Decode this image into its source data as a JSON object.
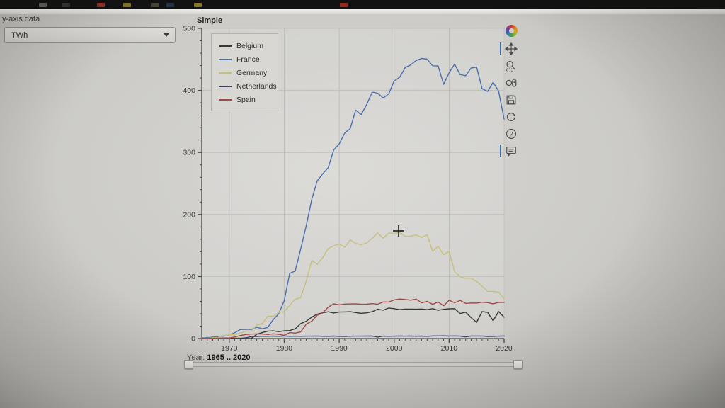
{
  "browser_bar": {
    "favicon_colors": [
      "#6f6f6f",
      "#3a3a3a",
      "#b33428",
      "#9a8a2c",
      "#55503a",
      "#2c3a55",
      "#9a8a2c",
      "#b32b20"
    ]
  },
  "controls": {
    "y_axis_label": "y-axis data",
    "y_axis_value": "TWh"
  },
  "plot": {
    "title": "Simple"
  },
  "toolbar": {
    "tools": [
      "pan",
      "box-zoom",
      "wheel-zoom",
      "save",
      "reset",
      "help",
      "hover"
    ],
    "active": [
      "pan",
      "hover"
    ]
  },
  "slider": {
    "label": "Year:",
    "value": "1965 .. 2020",
    "min": 1965,
    "max": 2020
  },
  "chart_data": {
    "type": "line",
    "title": "Simple",
    "xlabel": "",
    "ylabel": "TWh",
    "xlim": [
      1965,
      2020
    ],
    "ylim": [
      0,
      500
    ],
    "x_ticks": [
      1970,
      1980,
      1990,
      2000,
      2010,
      2020
    ],
    "y_ticks": [
      0,
      100,
      200,
      300,
      400,
      500
    ],
    "grid": true,
    "legend_position": "top_left",
    "x": [
      1965,
      1966,
      1967,
      1968,
      1969,
      1970,
      1971,
      1972,
      1973,
      1974,
      1975,
      1976,
      1977,
      1978,
      1979,
      1980,
      1981,
      1982,
      1983,
      1984,
      1985,
      1986,
      1987,
      1988,
      1989,
      1990,
      1991,
      1992,
      1993,
      1994,
      1995,
      1996,
      1997,
      1998,
      1999,
      2000,
      2001,
      2002,
      2003,
      2004,
      2005,
      2006,
      2007,
      2008,
      2009,
      2010,
      2011,
      2012,
      2013,
      2014,
      2015,
      2016,
      2017,
      2018,
      2019,
      2020
    ],
    "series": [
      {
        "name": "Belgium",
        "color": "#343a35",
        "values": [
          0,
          0,
          0,
          0,
          0,
          0,
          0,
          0,
          0,
          0.1,
          6.8,
          9.8,
          11.9,
          12.5,
          11.1,
          12.5,
          12.9,
          15.7,
          24.1,
          27.8,
          34.5,
          39.4,
          41.4,
          43.1,
          41.2,
          42.7,
          42.9,
          43.3,
          41.9,
          40.6,
          41.4,
          43.3,
          47.4,
          45.7,
          49.2,
          48.2,
          46.7,
          47.4,
          47.4,
          47.3,
          47.6,
          46.6,
          48.2,
          45.6,
          47.2,
          47.9,
          48.2,
          40.3,
          42.6,
          33.7,
          26.1,
          43.5,
          42.2,
          28.6,
          43.5,
          34.4
        ]
      },
      {
        "name": "France",
        "color": "#4a6fae",
        "values": [
          0.9,
          1.4,
          2.3,
          3.1,
          4,
          5.7,
          9.4,
          14.6,
          14.8,
          14.7,
          18.3,
          15.8,
          17.9,
          30.5,
          39.9,
          61.2,
          105.2,
          108.9,
          144.2,
          181.7,
          224.1,
          254.2,
          265.5,
          275.5,
          303.9,
          313.7,
          331.3,
          338.4,
          368.2,
          361.1,
          377.2,
          397.3,
          395.5,
          387.9,
          394.2,
          415.2,
          421.1,
          436.8,
          441.1,
          448.2,
          451.5,
          450.2,
          439.7,
          439.5,
          409.7,
          428.5,
          442.4,
          425.4,
          423.7,
          436.1,
          437.4,
          402.9,
          398.4,
          412.9,
          399,
          353.8
        ]
      },
      {
        "name": "Germany",
        "color": "#c6c07c",
        "values": [
          0.1,
          0.3,
          1.1,
          1.9,
          5,
          6,
          5.9,
          9.2,
          11.9,
          12,
          21.4,
          24.3,
          36,
          35.9,
          42,
          43.7,
          53.4,
          63.6,
          65.9,
          92.6,
          125.9,
          119.6,
          130.5,
          145.1,
          149.4,
          152.5,
          147.4,
          158.8,
          153.5,
          151.2,
          154.1,
          161.6,
          170.3,
          161.6,
          170,
          169.6,
          171.3,
          164.8,
          165.1,
          167.1,
          163,
          167.4,
          140.5,
          148.8,
          134.9,
          140.6,
          108,
          99.5,
          97.3,
          97.1,
          91.8,
          84.6,
          76.3,
          76,
          75.1,
          64.4
        ]
      },
      {
        "name": "Netherlands",
        "color": "#39405c",
        "values": [
          0,
          0,
          0,
          0.3,
          0.4,
          0.4,
          0.4,
          0.4,
          1.1,
          3.2,
          3.3,
          3.8,
          3.7,
          4,
          3.5,
          4.2,
          3.7,
          3.9,
          3.6,
          3.9,
          3.9,
          4.1,
          3.6,
          3.7,
          4,
          3.5,
          3.4,
          3.8,
          3.9,
          3.9,
          4,
          4.1,
          2.4,
          3.9,
          3.7,
          3.9,
          4,
          3.9,
          4,
          3.8,
          4,
          3.5,
          4.2,
          4.2,
          4.3,
          4,
          4.2,
          3.9,
          2.9,
          4.1,
          4.1,
          4.1,
          3.4,
          3.5,
          3.9,
          4.1
        ]
      },
      {
        "name": "Spain",
        "color": "#9e4a44",
        "values": [
          0,
          0,
          0,
          0.8,
          0.9,
          0.9,
          2.5,
          4.8,
          6.5,
          7.2,
          7.5,
          7.4,
          6.5,
          7.6,
          6.7,
          5.2,
          9.6,
          8.8,
          10.7,
          23.1,
          28,
          37.5,
          41.3,
          50.5,
          56.1,
          54.3,
          55.6,
          55.8,
          56.1,
          55.3,
          55.4,
          56.3,
          55.3,
          59,
          58.9,
          62.2,
          63.7,
          63,
          61.9,
          63.6,
          57.5,
          60.1,
          55.1,
          58.9,
          52.8,
          61.8,
          57.7,
          61.5,
          56.7,
          57.3,
          57.2,
          58.6,
          58,
          55.8,
          58.4,
          58.3
        ]
      }
    ]
  }
}
